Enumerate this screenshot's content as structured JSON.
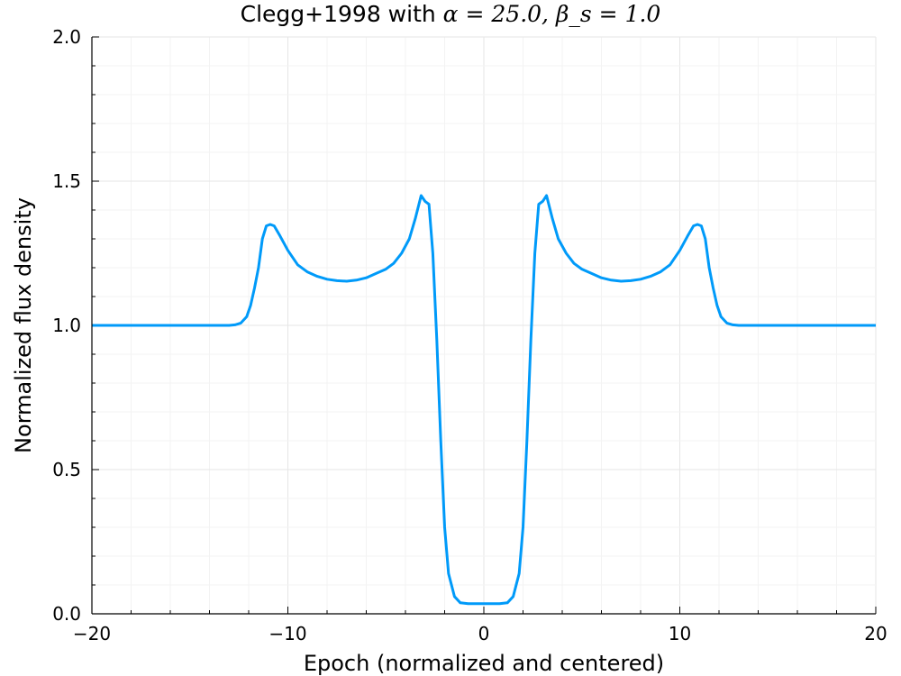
{
  "chart_data": {
    "type": "line",
    "title_text": "Clegg+1998 with ",
    "title_math": "α = 25.0, β_s = 1.0",
    "xlabel": "Epoch (normalized and centered)",
    "ylabel": "Normalized flux density",
    "xlim": [
      -20,
      20
    ],
    "ylim": [
      0,
      2
    ],
    "xticks": [
      -20,
      -10,
      0,
      10,
      20
    ],
    "xtick_labels": [
      "−20",
      "−10",
      "0",
      "10",
      "20"
    ],
    "yticks": [
      0,
      0.5,
      1,
      1.5,
      2
    ],
    "ytick_labels": [
      "0.0",
      "0.5",
      "1.0",
      "1.5",
      "2.0"
    ],
    "grid": true,
    "legend": "none",
    "color": "#009af9",
    "series": [
      {
        "x": [
          0,
          0.8,
          1.2,
          1.5,
          1.8,
          2.0,
          2.2,
          2.4,
          2.6,
          2.8,
          3.0,
          3.2,
          3.5,
          3.8,
          4.2,
          4.6,
          5.0,
          5.5,
          6.0,
          6.5,
          7.0,
          7.5,
          8.0,
          8.5,
          9.0,
          9.5,
          10.0,
          10.4,
          10.7,
          10.9,
          11.1,
          11.3,
          11.5,
          11.7,
          11.9,
          12.1,
          12.4,
          12.7,
          13.0,
          14.0,
          16.0,
          18.0,
          20.0
        ],
        "y": [
          0.035,
          0.035,
          0.038,
          0.06,
          0.14,
          0.3,
          0.6,
          0.95,
          1.25,
          1.42,
          1.43,
          1.45,
          1.37,
          1.3,
          1.25,
          1.215,
          1.195,
          1.18,
          1.165,
          1.157,
          1.153,
          1.155,
          1.16,
          1.17,
          1.185,
          1.21,
          1.26,
          1.31,
          1.345,
          1.35,
          1.345,
          1.3,
          1.2,
          1.13,
          1.07,
          1.03,
          1.008,
          1.002,
          1.0,
          1.0,
          1.0,
          1.0,
          1.0
        ],
        "mirror_about_zero": true
      }
    ]
  }
}
